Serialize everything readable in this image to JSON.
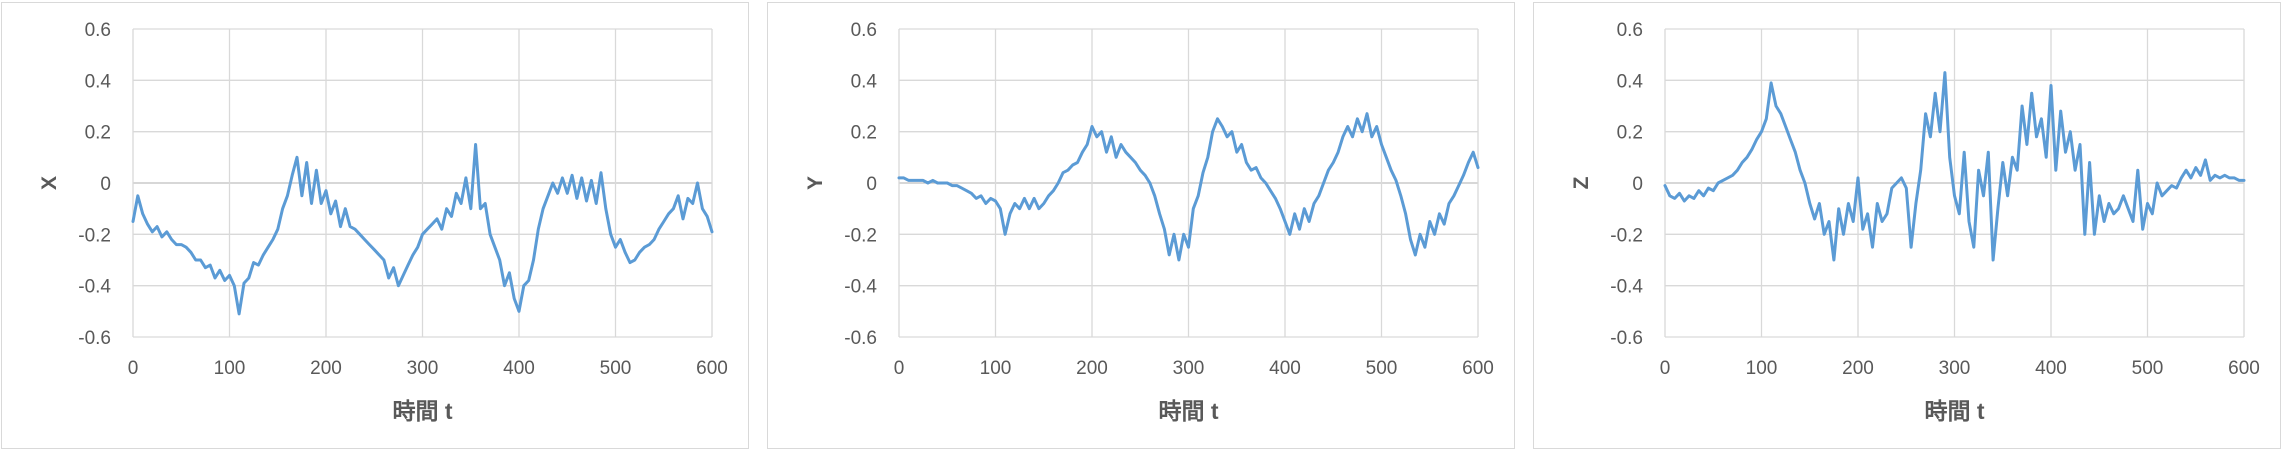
{
  "style": {
    "line_color": "#5b9bd5",
    "grid_color": "#d9d9d9",
    "zero_color": "#bfbfbf",
    "text_color": "#595959"
  },
  "chart_data": [
    {
      "type": "line",
      "xlabel": "時間 t",
      "ylabel": "X",
      "xlim": [
        0,
        600
      ],
      "ylim": [
        -0.6,
        0.6
      ],
      "xticks": [
        "0",
        "100",
        "200",
        "300",
        "400",
        "500",
        "600"
      ],
      "yticks": [
        "0.6",
        "0.4",
        "0.2",
        "0",
        "-0.2",
        "-0.4",
        "-0.6"
      ],
      "grid": true,
      "x": [
        0,
        5,
        10,
        15,
        20,
        25,
        30,
        35,
        40,
        45,
        50,
        55,
        60,
        65,
        70,
        75,
        80,
        85,
        90,
        95,
        100,
        105,
        110,
        115,
        120,
        125,
        130,
        135,
        140,
        145,
        150,
        155,
        160,
        165,
        170,
        175,
        180,
        185,
        190,
        195,
        200,
        205,
        210,
        215,
        220,
        225,
        230,
        235,
        240,
        245,
        250,
        255,
        260,
        265,
        270,
        275,
        280,
        285,
        290,
        295,
        300,
        305,
        310,
        315,
        320,
        325,
        330,
        335,
        340,
        345,
        350,
        355,
        360,
        365,
        370,
        375,
        380,
        385,
        390,
        395,
        400,
        405,
        410,
        415,
        420,
        425,
        430,
        435,
        440,
        445,
        450,
        455,
        460,
        465,
        470,
        475,
        480,
        485,
        490,
        495,
        500,
        505,
        510,
        515,
        520,
        525,
        530,
        535,
        540,
        545,
        550,
        555,
        560,
        565,
        570,
        575,
        580,
        585,
        590,
        595,
        600
      ],
      "y": [
        -0.15,
        -0.05,
        -0.12,
        -0.16,
        -0.19,
        -0.17,
        -0.21,
        -0.19,
        -0.22,
        -0.24,
        -0.24,
        -0.25,
        -0.27,
        -0.3,
        -0.3,
        -0.33,
        -0.32,
        -0.37,
        -0.34,
        -0.38,
        -0.36,
        -0.4,
        -0.51,
        -0.39,
        -0.37,
        -0.31,
        -0.32,
        -0.28,
        -0.25,
        -0.22,
        -0.18,
        -0.1,
        -0.05,
        0.03,
        0.1,
        -0.05,
        0.08,
        -0.08,
        0.05,
        -0.08,
        -0.03,
        -0.12,
        -0.07,
        -0.17,
        -0.1,
        -0.17,
        -0.18,
        -0.2,
        -0.22,
        -0.24,
        -0.26,
        -0.28,
        -0.3,
        -0.37,
        -0.33,
        -0.4,
        -0.36,
        -0.32,
        -0.28,
        -0.25,
        -0.2,
        -0.18,
        -0.16,
        -0.14,
        -0.18,
        -0.1,
        -0.13,
        -0.04,
        -0.08,
        0.02,
        -0.1,
        0.15,
        -0.1,
        -0.08,
        -0.2,
        -0.25,
        -0.3,
        -0.4,
        -0.35,
        -0.45,
        -0.5,
        -0.4,
        -0.38,
        -0.3,
        -0.18,
        -0.1,
        -0.05,
        0,
        -0.04,
        0.02,
        -0.04,
        0.03,
        -0.06,
        0.02,
        -0.07,
        0.01,
        -0.08,
        0.04,
        -0.1,
        -0.2,
        -0.25,
        -0.22,
        -0.27,
        -0.31,
        -0.3,
        -0.27,
        -0.25,
        -0.24,
        -0.22,
        -0.18,
        -0.15,
        -0.12,
        -0.1,
        -0.05,
        -0.14,
        -0.06,
        -0.08,
        0,
        -0.1,
        -0.13,
        -0.19
      ]
    },
    {
      "type": "line",
      "xlabel": "時間 t",
      "ylabel": "Y",
      "xlim": [
        0,
        600
      ],
      "ylim": [
        -0.6,
        0.6
      ],
      "xticks": [
        "0",
        "100",
        "200",
        "300",
        "400",
        "500",
        "600"
      ],
      "yticks": [
        "0.6",
        "0.4",
        "0.2",
        "0",
        "-0.2",
        "-0.4",
        "-0.6"
      ],
      "grid": true,
      "x": [
        0,
        5,
        10,
        15,
        20,
        25,
        30,
        35,
        40,
        45,
        50,
        55,
        60,
        65,
        70,
        75,
        80,
        85,
        90,
        95,
        100,
        105,
        110,
        115,
        120,
        125,
        130,
        135,
        140,
        145,
        150,
        155,
        160,
        165,
        170,
        175,
        180,
        185,
        190,
        195,
        200,
        205,
        210,
        215,
        220,
        225,
        230,
        235,
        240,
        245,
        250,
        255,
        260,
        265,
        270,
        275,
        280,
        285,
        290,
        295,
        300,
        305,
        310,
        315,
        320,
        325,
        330,
        335,
        340,
        345,
        350,
        355,
        360,
        365,
        370,
        375,
        380,
        385,
        390,
        395,
        400,
        405,
        410,
        415,
        420,
        425,
        430,
        435,
        440,
        445,
        450,
        455,
        460,
        465,
        470,
        475,
        480,
        485,
        490,
        495,
        500,
        505,
        510,
        515,
        520,
        525,
        530,
        535,
        540,
        545,
        550,
        555,
        560,
        565,
        570,
        575,
        580,
        585,
        590,
        595,
        600
      ],
      "y": [
        0.02,
        0.02,
        0.01,
        0.01,
        0.01,
        0.01,
        0,
        0.01,
        0,
        0,
        0,
        -0.01,
        -0.01,
        -0.02,
        -0.03,
        -0.04,
        -0.06,
        -0.05,
        -0.08,
        -0.06,
        -0.07,
        -0.1,
        -0.2,
        -0.12,
        -0.08,
        -0.1,
        -0.06,
        -0.1,
        -0.06,
        -0.1,
        -0.08,
        -0.05,
        -0.03,
        0,
        0.04,
        0.05,
        0.07,
        0.08,
        0.12,
        0.15,
        0.22,
        0.18,
        0.2,
        0.12,
        0.18,
        0.1,
        0.15,
        0.12,
        0.1,
        0.08,
        0.05,
        0.03,
        0,
        -0.05,
        -0.12,
        -0.18,
        -0.28,
        -0.2,
        -0.3,
        -0.2,
        -0.25,
        -0.1,
        -0.05,
        0.04,
        0.1,
        0.2,
        0.25,
        0.22,
        0.18,
        0.2,
        0.12,
        0.15,
        0.08,
        0.05,
        0.06,
        0.02,
        0,
        -0.03,
        -0.06,
        -0.1,
        -0.15,
        -0.2,
        -0.12,
        -0.18,
        -0.1,
        -0.15,
        -0.08,
        -0.05,
        0,
        0.05,
        0.08,
        0.12,
        0.18,
        0.22,
        0.18,
        0.25,
        0.2,
        0.27,
        0.18,
        0.22,
        0.15,
        0.1,
        0.05,
        0.01,
        -0.05,
        -0.12,
        -0.22,
        -0.28,
        -0.2,
        -0.25,
        -0.15,
        -0.2,
        -0.12,
        -0.16,
        -0.08,
        -0.05,
        -0.01,
        0.03,
        0.08,
        0.12,
        0.06
      ]
    },
    {
      "type": "line",
      "xlabel": "時間 t",
      "ylabel": "Z",
      "xlim": [
        0,
        600
      ],
      "ylim": [
        -0.6,
        0.6
      ],
      "xticks": [
        "0",
        "100",
        "200",
        "300",
        "400",
        "500",
        "600"
      ],
      "yticks": [
        "0.6",
        "0.4",
        "0.2",
        "0",
        "-0.2",
        "-0.4",
        "-0.6"
      ],
      "grid": true,
      "x": [
        0,
        5,
        10,
        15,
        20,
        25,
        30,
        35,
        40,
        45,
        50,
        55,
        60,
        65,
        70,
        75,
        80,
        85,
        90,
        95,
        100,
        105,
        110,
        115,
        120,
        125,
        130,
        135,
        140,
        145,
        150,
        155,
        160,
        165,
        170,
        175,
        180,
        185,
        190,
        195,
        200,
        205,
        210,
        215,
        220,
        225,
        230,
        235,
        240,
        245,
        250,
        255,
        260,
        265,
        270,
        275,
        280,
        285,
        290,
        295,
        300,
        305,
        310,
        315,
        320,
        325,
        330,
        335,
        340,
        345,
        350,
        355,
        360,
        365,
        370,
        375,
        380,
        385,
        390,
        395,
        400,
        405,
        410,
        415,
        420,
        425,
        430,
        435,
        440,
        445,
        450,
        455,
        460,
        465,
        470,
        475,
        480,
        485,
        490,
        495,
        500,
        505,
        510,
        515,
        520,
        525,
        530,
        535,
        540,
        545,
        550,
        555,
        560,
        565,
        570,
        575,
        580,
        585,
        590,
        595,
        600
      ],
      "y": [
        -0.01,
        -0.05,
        -0.06,
        -0.04,
        -0.07,
        -0.05,
        -0.06,
        -0.03,
        -0.05,
        -0.02,
        -0.03,
        0,
        0.01,
        0.02,
        0.03,
        0.05,
        0.08,
        0.1,
        0.13,
        0.17,
        0.2,
        0.25,
        0.39,
        0.3,
        0.27,
        0.22,
        0.17,
        0.12,
        0.05,
        0,
        -0.08,
        -0.14,
        -0.08,
        -0.2,
        -0.15,
        -0.3,
        -0.1,
        -0.2,
        -0.08,
        -0.15,
        0.02,
        -0.18,
        -0.12,
        -0.25,
        -0.08,
        -0.15,
        -0.12,
        -0.02,
        0,
        0.02,
        -0.02,
        -0.25,
        -0.08,
        0.05,
        0.27,
        0.18,
        0.35,
        0.2,
        0.43,
        0.1,
        -0.05,
        -0.12,
        0.12,
        -0.15,
        -0.25,
        0.05,
        -0.05,
        0.12,
        -0.3,
        -0.1,
        0.08,
        -0.05,
        0.1,
        0.05,
        0.3,
        0.15,
        0.35,
        0.18,
        0.25,
        0.1,
        0.38,
        0.05,
        0.28,
        0.12,
        0.2,
        0.05,
        0.15,
        -0.2,
        0.08,
        -0.2,
        -0.05,
        -0.15,
        -0.08,
        -0.12,
        -0.1,
        -0.05,
        -0.1,
        -0.15,
        0.05,
        -0.18,
        -0.08,
        -0.12,
        0,
        -0.05,
        -0.03,
        -0.01,
        -0.02,
        0.02,
        0.05,
        0.02,
        0.06,
        0.03,
        0.09,
        0.01,
        0.03,
        0.02,
        0.03,
        0.02,
        0.02,
        0.01,
        0.01
      ]
    }
  ]
}
